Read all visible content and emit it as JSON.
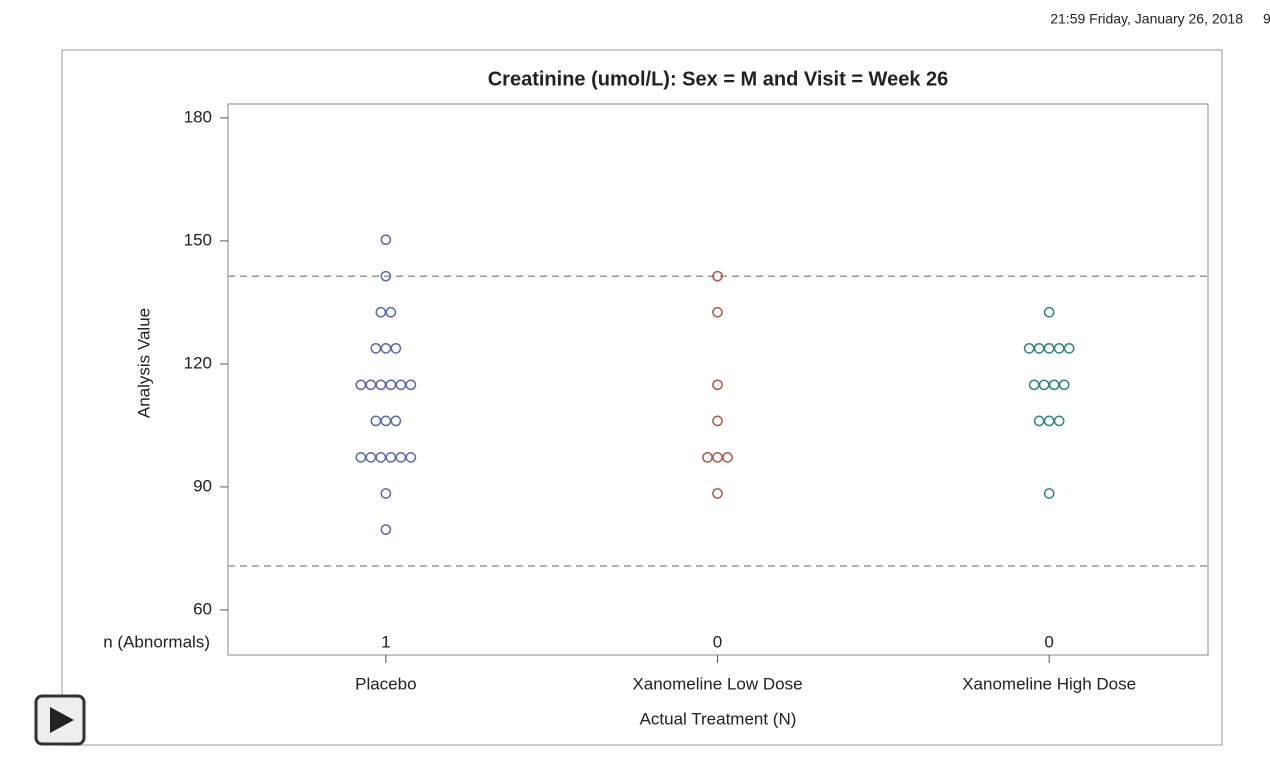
{
  "header": {
    "timestamp": "21:59 Friday, January 26, 2018",
    "page": "9"
  },
  "chart_data": {
    "type": "dot",
    "title": "Creatinine (umol/L): Sex = M and Visit = Week 26",
    "x_label": "Actual Treatment (N)",
    "y_label": "Analysis Value",
    "categories": [
      "Placebo",
      "Xanomeline Low Dose",
      "Xanomeline High Dose"
    ],
    "colors": [
      "#5b6aa6",
      "#b0574c",
      "#2f8580"
    ],
    "values": [
      [
        150.3,
        141.4,
        132.6,
        132.6,
        123.8,
        123.8,
        123.8,
        114.9,
        114.9,
        114.9,
        114.9,
        114.9,
        114.9,
        106.1,
        106.1,
        106.1,
        97.2,
        97.2,
        97.2,
        97.2,
        97.2,
        97.2,
        88.4,
        79.6
      ],
      [
        141.4,
        132.6,
        114.9,
        106.1,
        97.2,
        97.2,
        97.2,
        88.4
      ],
      [
        132.6,
        123.8,
        123.8,
        123.8,
        123.8,
        123.8,
        114.9,
        114.9,
        114.9,
        114.9,
        106.1,
        106.1,
        106.1,
        88.4
      ]
    ],
    "count_label": "n (Abnormals)",
    "counts": [
      1,
      0,
      0
    ],
    "reference_lines": [
      70.7,
      141.4
    ],
    "ylim": [
      49,
      183.4
    ],
    "yticks": [
      60,
      90,
      120,
      150,
      180
    ]
  }
}
